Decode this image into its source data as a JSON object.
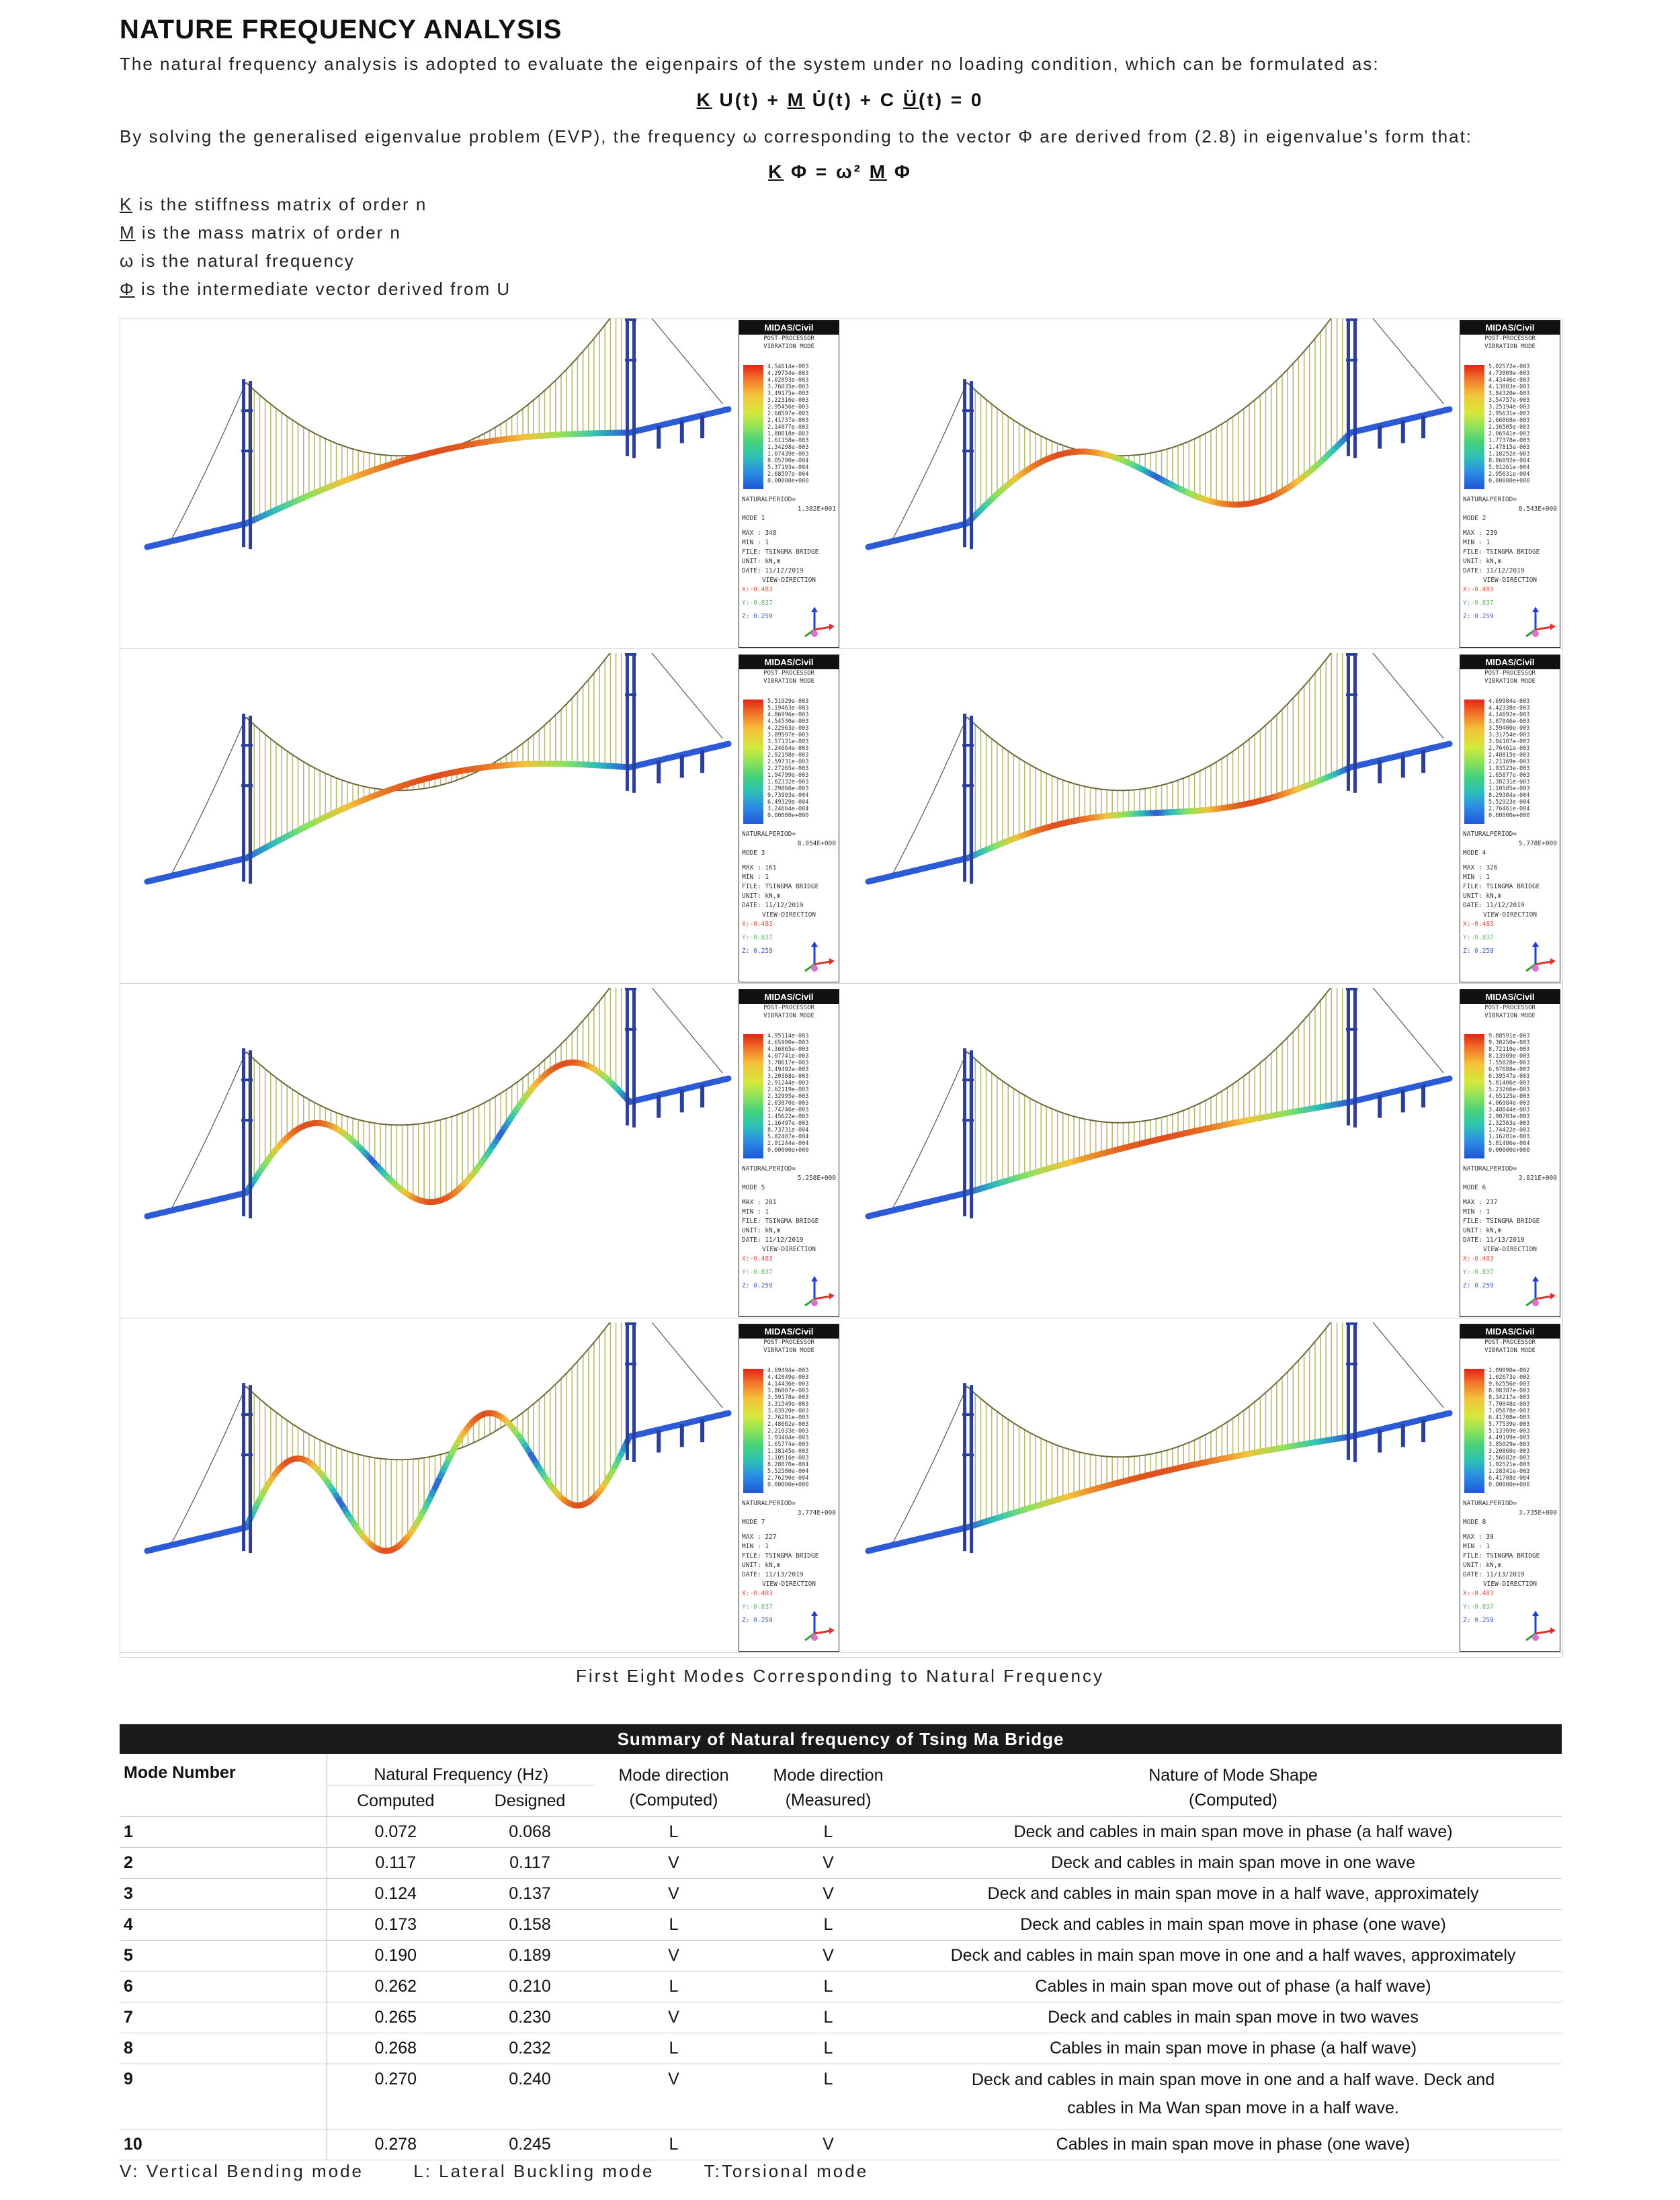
{
  "heading": "NATURE FREQUENCY ANALYSIS",
  "intro": "The natural frequency analysis is adopted to evaluate the eigenpairs of the system under no loading condition, which can be formulated as:",
  "equation1": {
    "K": "K",
    "p1": " U(t) + ",
    "M": "M",
    "p2": " U̇(t) + C ",
    "U": "U",
    "p3": "̈(t) = 0"
  },
  "evp_text": "By solving the generalised eigenvalue problem (EVP), the frequency ω corresponding to the vector Φ are derived from (2.8) in eigenvalue’s form that:",
  "equation2": {
    "K": "K",
    "rest": " Φ = ω² ",
    "M": "M",
    "tail": " Φ"
  },
  "definitions": [
    {
      "sym": "K",
      "text": " is the stiffness matrix of order n"
    },
    {
      "sym": "M",
      "text": " is the mass matrix of order n"
    },
    {
      "sym": "ω",
      "text": " is the natural frequency"
    },
    {
      "sym": "Φ",
      "text": " is the intermediate vector derived from U"
    }
  ],
  "legend_common": {
    "brand": "MIDAS/Civil",
    "sub1": "POST-PROCESSOR",
    "sub2": "VIBRATION MODE",
    "period_label": "NATURALPERIOD=",
    "file": "FILE: TSINGMA BRIDGE",
    "unit": "UNIT: kN,m",
    "view": "VIEW-DIRECTION",
    "vx": "X:-0.483",
    "vy": "Y:-0.837",
    "vz": "Z: 0.259"
  },
  "modes": [
    {
      "period": "1.382E+001",
      "mode": "MODE 1",
      "max": "MAX : 348",
      "min": "MIN : 1",
      "date": "DATE: 11/12/2019",
      "vals": [
        "4.54614e-003",
        "4.29754e-003",
        "4.02893e-003",
        "3.76035e-003",
        "3.49175e-003",
        "3.22316e-003",
        "2.95456e-003",
        "2.68597e-003",
        "2.41737e-003",
        "2.14877e-003",
        "1.88018e-003",
        "1.61158e-003",
        "1.34298e-003",
        "1.07439e-003",
        "8.05790e-004",
        "5.37193e-004",
        "2.68597e-004",
        "0.00000e+000"
      ]
    },
    {
      "period": "8.543E+000",
      "mode": "MODE 2",
      "max": "MAX : 239",
      "min": "MIN : 1",
      "date": "DATE: 11/12/2019",
      "vals": [
        "5.02572e-003",
        "4.73009e-003",
        "4.43446e-003",
        "4.13883e-003",
        "3.84320e-003",
        "3.54757e-003",
        "3.25194e-003",
        "2.95631e-003",
        "2.66068e-003",
        "2.36505e-003",
        "2.06941e-003",
        "1.77378e-003",
        "1.47815e-003",
        "1.18252e-003",
        "8.86892e-004",
        "5.91261e-004",
        "2.95631e-004",
        "0.00000e+000"
      ]
    },
    {
      "period": "8.054E+000",
      "mode": "MODE 3",
      "max": "MAX : 161",
      "min": "MIN : 1",
      "date": "DATE: 11/12/2019",
      "vals": [
        "5.51929e-003",
        "5.19463e-003",
        "4.86996e-003",
        "4.54530e-003",
        "4.22063e-003",
        "3.89597e-003",
        "3.57131e-003",
        "3.24664e-003",
        "2.92198e-003",
        "2.59731e-003",
        "2.27265e-003",
        "1.94799e-003",
        "1.62332e-003",
        "1.29866e-003",
        "9.73993e-004",
        "6.49329e-004",
        "3.24664e-004",
        "0.00000e+000"
      ]
    },
    {
      "period": "5.778E+000",
      "mode": "MODE 4",
      "max": "MAX : 326",
      "min": "MIN : 1",
      "date": "DATE: 11/12/2019",
      "vals": [
        "4.69984e-003",
        "4.42338e-003",
        "4.14692e-003",
        "3.87046e-003",
        "3.59400e-003",
        "3.31754e-003",
        "3.04107e-003",
        "2.76461e-003",
        "2.48815e-003",
        "2.21169e-003",
        "1.93523e-003",
        "1.65877e-003",
        "1.38231e-003",
        "1.10585e-003",
        "8.29384e-004",
        "5.52923e-004",
        "2.76461e-004",
        "0.00000e+000"
      ]
    },
    {
      "period": "5.258E+000",
      "mode": "MODE 5",
      "max": "MAX : 281",
      "min": "MIN : 1",
      "date": "DATE: 11/12/2019",
      "vals": [
        "4.95114e-003",
        "4.65990e-003",
        "4.36865e-003",
        "4.07741e-003",
        "3.78617e-003",
        "3.49492e-003",
        "3.20368e-003",
        "2.91244e-003",
        "2.62119e-003",
        "2.32995e-003",
        "2.03870e-003",
        "1.74746e-003",
        "1.45622e-003",
        "1.16497e-003",
        "8.73731e-004",
        "5.82487e-004",
        "2.91244e-004",
        "0.00000e+000"
      ]
    },
    {
      "period": "3.821E+000",
      "mode": "MODE 6",
      "max": "MAX : 237",
      "min": "MIN : 1",
      "date": "DATE: 11/13/2019",
      "vals": [
        "9.88591e-003",
        "9.30250e-003",
        "8.72110e-003",
        "8.13969e-003",
        "7.55828e-003",
        "6.97688e-003",
        "6.39547e-003",
        "5.81406e-003",
        "5.23266e-003",
        "4.65125e-003",
        "4.06984e-003",
        "3.48844e-003",
        "2.90703e-003",
        "2.32563e-003",
        "1.74422e-003",
        "1.16281e-003",
        "5.81406e-004",
        "0.00000e+000"
      ]
    },
    {
      "period": "3.774E+000",
      "mode": "MODE 7",
      "max": "MAX : 227",
      "min": "MIN : 1",
      "date": "DATE: 11/13/2019",
      "vals": [
        "4.69494e-003",
        "4.42049e-003",
        "4.14436e-003",
        "3.86807e-003",
        "3.59178e-003",
        "3.31549e-003",
        "3.03920e-003",
        "2.76291e-003",
        "2.48662e-003",
        "2.21033e-003",
        "1.93404e-003",
        "1.65774e-003",
        "1.38145e-003",
        "1.10516e-003",
        "8.28870e-004",
        "5.52580e-004",
        "2.76290e-004",
        "0.00000e+000"
      ]
    },
    {
      "period": "3.735E+000",
      "mode": "MODE 8",
      "max": "MAX : 39",
      "min": "MIN : 1",
      "date": "DATE: 11/13/2019",
      "vals": [
        "1.09090e-002",
        "1.02673e-002",
        "9.62556e-003",
        "8.98387e-003",
        "8.34217e-003",
        "7.70048e-003",
        "7.05878e-003",
        "6.41708e-003",
        "5.77539e-003",
        "5.13369e-003",
        "4.49199e-003",
        "3.85029e-003",
        "3.20860e-003",
        "2.56682e-003",
        "1.92521e-003",
        "1.28341e-003",
        "6.41708e-004",
        "0.00000e+000"
      ]
    }
  ],
  "figure_caption": "First Eight Modes Corresponding to Natural Frequency",
  "table": {
    "title": "Summary of Natural frequency of Tsing Ma Bridge",
    "headers": {
      "mode_number": "Mode Number",
      "natural_frequency": "Natural Frequency (Hz)",
      "computed": "Computed",
      "designed": "Designed",
      "dir_computed_1": "Mode direction",
      "dir_computed_2": "(Computed)",
      "dir_measured_1": "Mode direction",
      "dir_measured_2": "(Measured)",
      "nature_1": "Nature of Mode Shape",
      "nature_2": "(Computed)"
    },
    "rows": [
      {
        "n": "1",
        "computed": "0.072",
        "designed": "0.068",
        "dc": "L",
        "dm": "L",
        "nature": "Deck and cables in main span move in phase (a half wave)"
      },
      {
        "n": "2",
        "computed": "0.117",
        "designed": "0.117",
        "dc": "V",
        "dm": "V",
        "nature": "Deck and cables in main span move in one wave"
      },
      {
        "n": "3",
        "computed": "0.124",
        "designed": "0.137",
        "dc": "V",
        "dm": "V",
        "nature": "Deck and cables in main span move in a half wave, approximately"
      },
      {
        "n": "4",
        "computed": "0.173",
        "designed": "0.158",
        "dc": "L",
        "dm": "L",
        "nature": "Deck and cables in main span move in phase (one wave)"
      },
      {
        "n": "5",
        "computed": "0.190",
        "designed": "0.189",
        "dc": "V",
        "dm": "V",
        "nature": "Deck and cables in main span move in one and a half waves, approximately"
      },
      {
        "n": "6",
        "computed": "0.262",
        "designed": "0.210",
        "dc": "L",
        "dm": "L",
        "nature": "Cables in main span move out of phase (a half wave)"
      },
      {
        "n": "7",
        "computed": "0.265",
        "designed": "0.230",
        "dc": "V",
        "dm": "L",
        "nature": "Deck and cables in main span move in two waves"
      },
      {
        "n": "8",
        "computed": "0.268",
        "designed": "0.232",
        "dc": "L",
        "dm": "L",
        "nature": "Cables in main span move in phase (a half wave)"
      },
      {
        "n": "9",
        "computed": "0.270",
        "designed": "0.240",
        "dc": "V",
        "dm": "L",
        "nature": "Deck and cables in main span move in one and a half wave. Deck and",
        "nature2": "cables in Ma Wan span move in a half wave."
      },
      {
        "n": "10",
        "computed": "0.278",
        "designed": "0.245",
        "dc": "L",
        "dm": "V",
        "nature": "Cables in main span move in phase (one wave)"
      }
    ]
  },
  "footer": {
    "v": "V: Vertical Bending mode",
    "l": "L: Lateral Buckling mode",
    "t": "T:Torsional mode"
  },
  "colors": {
    "accent_dark": "#1a1a1a",
    "tower": "#2a3f9a",
    "hanger": "#b9b877",
    "deck_low": "#2d5bd6",
    "deck_high": "#e0501d"
  }
}
